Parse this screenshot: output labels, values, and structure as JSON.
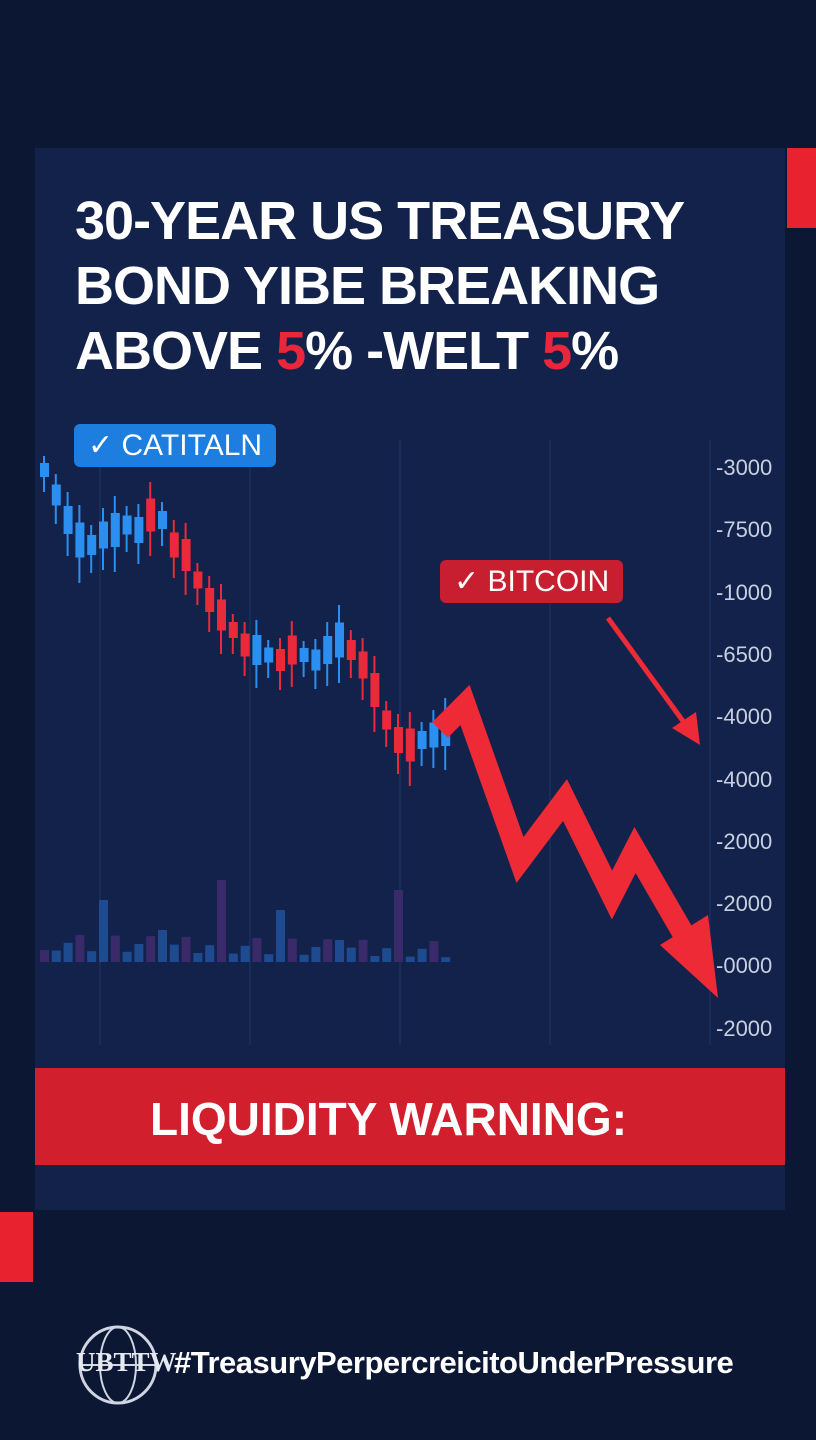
{
  "headline": {
    "lines": [
      "30-YEAR US TREASURY",
      "BOND YIBE BREAKING"
    ],
    "line3_parts": [
      "ABOVE",
      "5",
      "% -WELT",
      "5",
      "%"
    ]
  },
  "tags": {
    "left": "CATITALN",
    "right": "BITCOIN"
  },
  "axis_labels": [
    "3000",
    "7500",
    "1000",
    "6500",
    "4000",
    "4000",
    "2000",
    "2000",
    "0000",
    "2000"
  ],
  "warning": "LIQUIDITY WARNING:",
  "footer": {
    "logo": "UBTTW",
    "hashtag": "#TreasuryPerpercreicitoUnderPressure"
  }
}
